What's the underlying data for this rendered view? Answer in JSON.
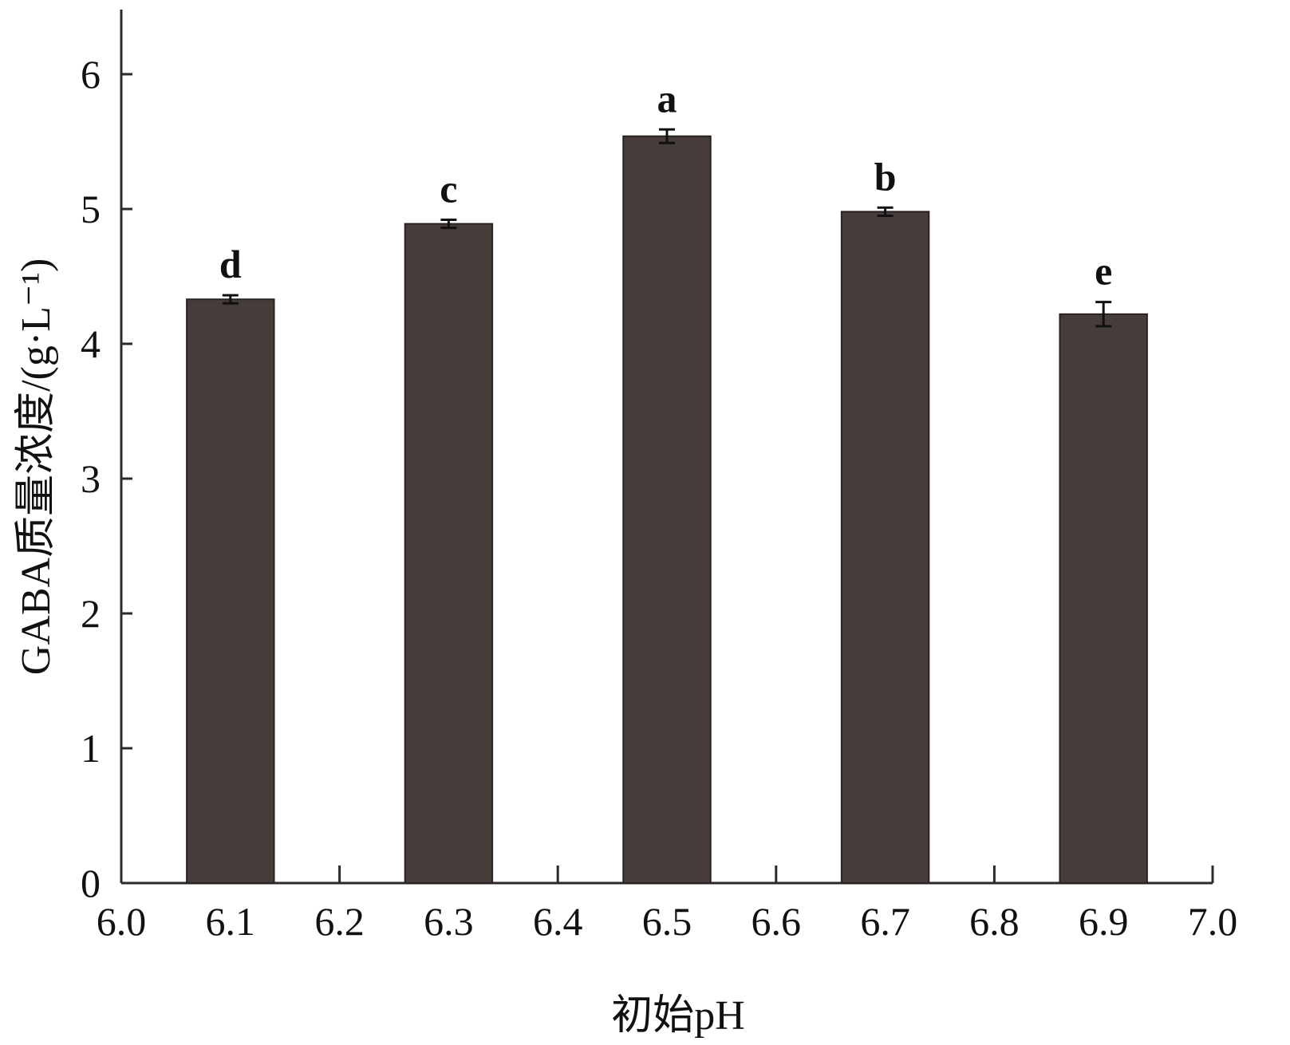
{
  "chart_data": {
    "type": "bar",
    "x": [
      6.1,
      6.3,
      6.5,
      6.7,
      6.9
    ],
    "values": [
      4.33,
      4.89,
      5.54,
      4.98,
      4.22
    ],
    "errors": [
      0.03,
      0.03,
      0.05,
      0.03,
      0.09
    ],
    "significance": [
      "d",
      "c",
      "a",
      "b",
      "e"
    ],
    "bar_width": 0.08,
    "xlim": [
      6.0,
      7.0
    ],
    "ylim": [
      0,
      6.5
    ],
    "xticks": [
      6.0,
      6.1,
      6.2,
      6.3,
      6.4,
      6.5,
      6.6,
      6.7,
      6.8,
      6.9,
      7.0
    ],
    "xtick_labels": [
      "6.0",
      "6.1",
      "6.2",
      "6.3",
      "6.4",
      "6.5",
      "6.6",
      "6.7",
      "6.8",
      "6.9",
      "7.0"
    ],
    "yticks": [
      0,
      1,
      2,
      3,
      4,
      5,
      6
    ],
    "ytick_labels": [
      "0",
      "1",
      "2",
      "3",
      "4",
      "5",
      "6"
    ],
    "xlabel": "初始pH",
    "ylabel": "GABA质量浓度/(g·L⁻¹)",
    "bar_color": "#463c3a",
    "grid": false
  }
}
